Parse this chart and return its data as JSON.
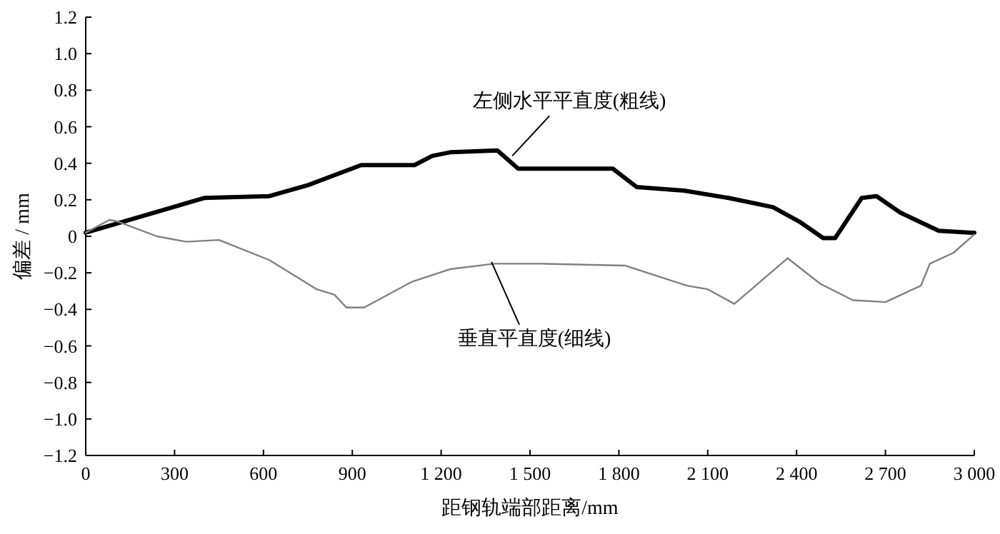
{
  "chart_data": {
    "type": "line",
    "xlabel": "距钢轨端部距离/mm",
    "ylabel": "偏差 / mm",
    "xlim": [
      0,
      3000
    ],
    "ylim": [
      -1.2,
      1.2
    ],
    "xticks": [
      0,
      300,
      600,
      900,
      {
        "value": 1200,
        "label": "1 200"
      },
      {
        "value": 1500,
        "label": "1 500"
      },
      {
        "value": 1800,
        "label": "1 800"
      },
      {
        "value": 2100,
        "label": "2 100"
      },
      {
        "value": 2400,
        "label": "2 400"
      },
      {
        "value": 2700,
        "label": "2 700"
      },
      {
        "value": 3000,
        "label": "3 000"
      }
    ],
    "yticks": [
      {
        "value": -1.2,
        "label": "−1.2"
      },
      {
        "value": -1.0,
        "label": "−1.0"
      },
      {
        "value": -0.8,
        "label": "−0.8"
      },
      {
        "value": -0.6,
        "label": "−0.6"
      },
      {
        "value": -0.4,
        "label": "−0.4"
      },
      {
        "value": -0.2,
        "label": "−0.2"
      },
      0,
      {
        "value": 0.2,
        "label": "0.2"
      },
      {
        "value": 0.4,
        "label": "0.4"
      },
      {
        "value": 0.6,
        "label": "0.6"
      },
      {
        "value": 0.8,
        "label": "0.8"
      },
      {
        "value": 1.0,
        "label": "1.0"
      },
      {
        "value": 1.2,
        "label": "1.2"
      }
    ],
    "grid": false,
    "series": [
      {
        "color": "#000000",
        "x": [
          0,
          400,
          620,
          750,
          930,
          1110,
          1170,
          1230,
          1390,
          1460,
          1780,
          1860,
          2020,
          2170,
          2320,
          2410,
          2490,
          2530,
          2620,
          2670,
          2750,
          2880,
          2990,
          3000
        ],
        "values": [
          0.02,
          0.21,
          0.22,
          0.28,
          0.39,
          0.39,
          0.44,
          0.46,
          0.47,
          0.37,
          0.37,
          0.27,
          0.25,
          0.21,
          0.16,
          0.08,
          -0.01,
          -0.01,
          0.21,
          0.22,
          0.13,
          0.03,
          0.02,
          0.02
        ]
      },
      {
        "color": "#808080",
        "x": [
          0,
          80,
          110,
          240,
          340,
          450,
          620,
          780,
          840,
          880,
          940,
          1100,
          1230,
          1380,
          1540,
          1820,
          2030,
          2100,
          2190,
          2370,
          2480,
          2590,
          2700,
          2820,
          2850,
          2930,
          3000
        ],
        "values": [
          0.02,
          0.09,
          0.08,
          0.0,
          -0.03,
          -0.02,
          -0.13,
          -0.29,
          -0.32,
          -0.39,
          -0.39,
          -0.25,
          -0.18,
          -0.15,
          -0.15,
          -0.16,
          -0.27,
          -0.29,
          -0.37,
          -0.12,
          -0.26,
          -0.35,
          -0.36,
          -0.27,
          -0.15,
          -0.09,
          0.01
        ]
      }
    ],
    "annotations": [
      {
        "text": "左侧水平平直度(粗线)",
        "x": 1440,
        "y": 0.44
      },
      {
        "text": "垂直平直度(细线)",
        "x": 1370,
        "y": -0.14
      }
    ]
  }
}
